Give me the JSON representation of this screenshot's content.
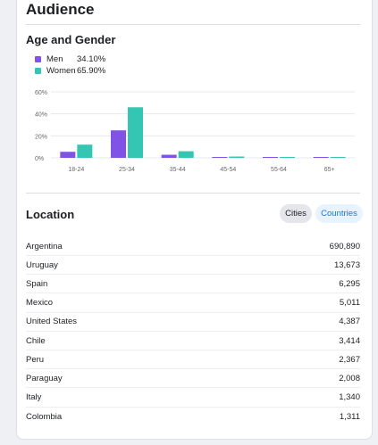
{
  "audience": {
    "title": "Audience",
    "age_gender": {
      "title": "Age and Gender",
      "legend": [
        {
          "name": "Men",
          "value": "34.10%",
          "color": "#8152e6"
        },
        {
          "name": "Women",
          "value": "65.90%",
          "color": "#34c6b3"
        }
      ]
    },
    "location": {
      "title": "Location",
      "tabs": [
        {
          "label": "Cities",
          "selected": false
        },
        {
          "label": "Countries",
          "selected": true
        }
      ],
      "rows": [
        {
          "name": "Argentina",
          "value": "690,890"
        },
        {
          "name": "Uruguay",
          "value": "13,673"
        },
        {
          "name": "Spain",
          "value": "6,295"
        },
        {
          "name": "Mexico",
          "value": "5,011"
        },
        {
          "name": "United States",
          "value": "4,387"
        },
        {
          "name": "Chile",
          "value": "3,414"
        },
        {
          "name": "Peru",
          "value": "2,367"
        },
        {
          "name": "Paraguay",
          "value": "2,008"
        },
        {
          "name": "Italy",
          "value": "1,340"
        },
        {
          "name": "Colombia",
          "value": "1,311"
        }
      ]
    }
  },
  "chart_data": {
    "type": "bar",
    "categories": [
      "18-24",
      "25-34",
      "35-44",
      "45-54",
      "55-64",
      "65+"
    ],
    "series": [
      {
        "name": "Men",
        "values": [
          5.5,
          25.0,
          2.8,
          0.5,
          0.3,
          0.2
        ],
        "color": "#8152e6"
      },
      {
        "name": "Women",
        "values": [
          12.0,
          46.0,
          6.0,
          1.2,
          0.4,
          0.3
        ],
        "color": "#34c6b3"
      }
    ],
    "yticks": [
      "0%",
      "20%",
      "40%",
      "60%"
    ],
    "ylim": [
      0,
      60
    ],
    "grid": true,
    "legend": "top-left"
  }
}
